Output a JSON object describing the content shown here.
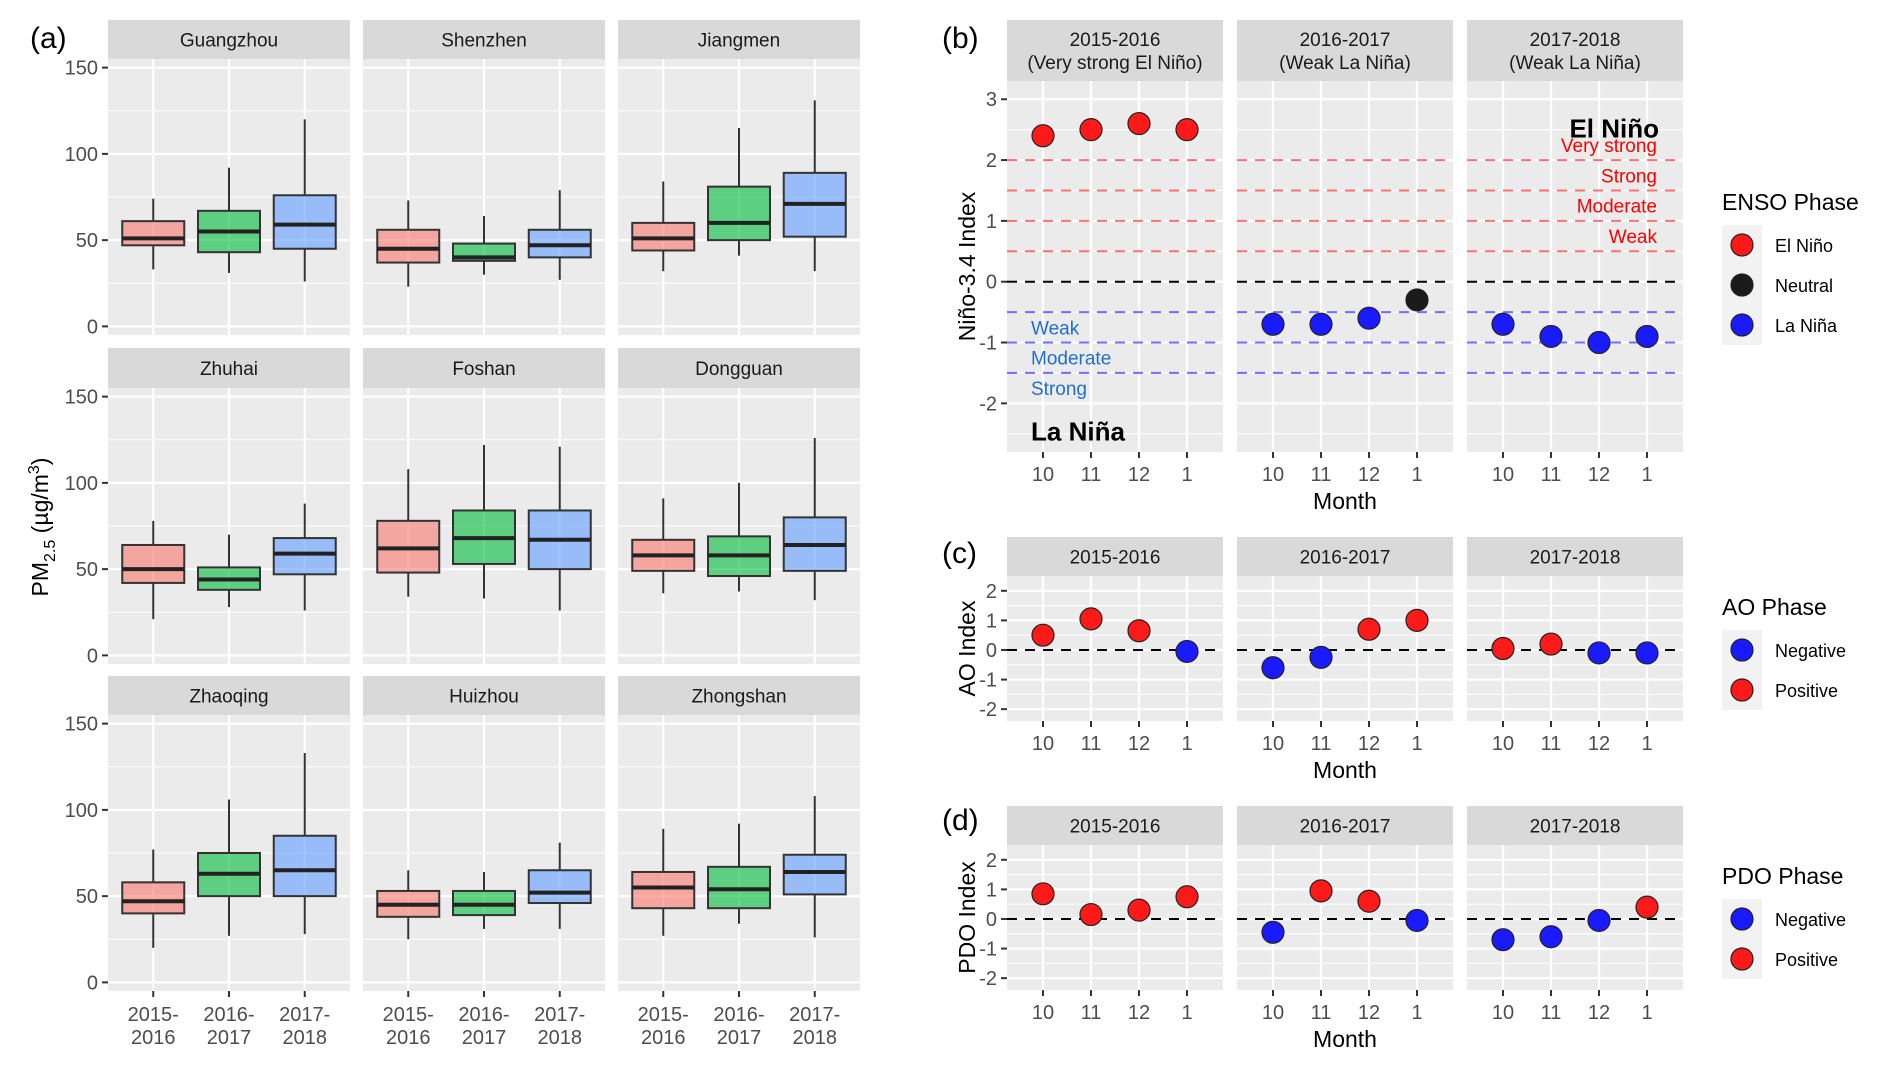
{
  "chart_data": [
    {
      "panel": "(a)",
      "type": "boxplot",
      "ylabel": "PM2.5 (µg/m3)",
      "ylabel_main": "PM",
      "ylabel_sub": "2.5",
      "ylabel_unit": " (µg/m",
      "ylabel_sup": "3",
      "ylabel_close": ")",
      "ylim": [
        -5,
        155
      ],
      "yticks": [
        0,
        50,
        100,
        150
      ],
      "categories": [
        "2015-\n2016",
        "2016-\n2017",
        "2017-\n2018"
      ],
      "category_lines": [
        [
          "2015-",
          "2016"
        ],
        [
          "2016-",
          "2017"
        ],
        [
          "2017-",
          "2018"
        ]
      ],
      "colors": [
        "#f8766d",
        "#00ba38",
        "#619cff"
      ],
      "facets": [
        {
          "name": "Guangzhou",
          "boxes": [
            {
              "lower": 33,
              "q1": 47,
              "median": 51,
              "q3": 61,
              "upper": 74
            },
            {
              "lower": 31,
              "q1": 43,
              "median": 55,
              "q3": 67,
              "upper": 92
            },
            {
              "lower": 26,
              "q1": 45,
              "median": 59,
              "q3": 76,
              "upper": 120
            }
          ]
        },
        {
          "name": "Shenzhen",
          "boxes": [
            {
              "lower": 23,
              "q1": 37,
              "median": 45,
              "q3": 56,
              "upper": 73
            },
            {
              "lower": 30,
              "q1": 38,
              "median": 40,
              "q3": 48,
              "upper": 64
            },
            {
              "lower": 27,
              "q1": 40,
              "median": 47,
              "q3": 56,
              "upper": 79
            }
          ]
        },
        {
          "name": "Jiangmen",
          "boxes": [
            {
              "lower": 32,
              "q1": 44,
              "median": 51,
              "q3": 60,
              "upper": 84
            },
            {
              "lower": 41,
              "q1": 50,
              "median": 60,
              "q3": 81,
              "upper": 115
            },
            {
              "lower": 32,
              "q1": 52,
              "median": 71,
              "q3": 89,
              "upper": 131
            }
          ]
        },
        {
          "name": "Zhuhai",
          "boxes": [
            {
              "lower": 21,
              "q1": 42,
              "median": 50,
              "q3": 64,
              "upper": 78
            },
            {
              "lower": 28,
              "q1": 38,
              "median": 44,
              "q3": 51,
              "upper": 70
            },
            {
              "lower": 26,
              "q1": 47,
              "median": 59,
              "q3": 68,
              "upper": 88
            }
          ]
        },
        {
          "name": "Foshan",
          "boxes": [
            {
              "lower": 34,
              "q1": 48,
              "median": 62,
              "q3": 78,
              "upper": 108
            },
            {
              "lower": 33,
              "q1": 53,
              "median": 68,
              "q3": 84,
              "upper": 122
            },
            {
              "lower": 26,
              "q1": 50,
              "median": 67,
              "q3": 84,
              "upper": 121
            }
          ]
        },
        {
          "name": "Dongguan",
          "boxes": [
            {
              "lower": 36,
              "q1": 49,
              "median": 58,
              "q3": 67,
              "upper": 91
            },
            {
              "lower": 37,
              "q1": 46,
              "median": 58,
              "q3": 69,
              "upper": 100
            },
            {
              "lower": 32,
              "q1": 49,
              "median": 64,
              "q3": 80,
              "upper": 126
            }
          ]
        },
        {
          "name": "Zhaoqing",
          "boxes": [
            {
              "lower": 20,
              "q1": 40,
              "median": 47,
              "q3": 58,
              "upper": 77
            },
            {
              "lower": 27,
              "q1": 50,
              "median": 63,
              "q3": 75,
              "upper": 106
            },
            {
              "lower": 28,
              "q1": 50,
              "median": 65,
              "q3": 85,
              "upper": 133
            }
          ]
        },
        {
          "name": "Huizhou",
          "boxes": [
            {
              "lower": 25,
              "q1": 38,
              "median": 45,
              "q3": 53,
              "upper": 65
            },
            {
              "lower": 31,
              "q1": 39,
              "median": 45,
              "q3": 53,
              "upper": 64
            },
            {
              "lower": 31,
              "q1": 46,
              "median": 52,
              "q3": 65,
              "upper": 81
            }
          ]
        },
        {
          "name": "Zhongshan",
          "boxes": [
            {
              "lower": 27,
              "q1": 43,
              "median": 55,
              "q3": 64,
              "upper": 89
            },
            {
              "lower": 34,
              "q1": 43,
              "median": 54,
              "q3": 67,
              "upper": 92
            },
            {
              "lower": 26,
              "q1": 51,
              "median": 64,
              "q3": 74,
              "upper": 108
            }
          ]
        }
      ]
    },
    {
      "panel": "(b)",
      "type": "scatter",
      "ylabel": "Niño-3.4 Index",
      "xlabel": "Month",
      "ylim": [
        -2.8,
        3.3
      ],
      "yticks": [
        -2,
        -1,
        0,
        1,
        2,
        3
      ],
      "x_categories": [
        "10",
        "11",
        "12",
        "1"
      ],
      "facets": [
        {
          "title_line1": "2015-2016",
          "title_line2": "(Very strong El Niño)",
          "points": [
            {
              "month": "10",
              "value": 2.4,
              "phase": "El Niño"
            },
            {
              "month": "11",
              "value": 2.5,
              "phase": "El Niño"
            },
            {
              "month": "12",
              "value": 2.6,
              "phase": "El Niño"
            },
            {
              "month": "1",
              "value": 2.5,
              "phase": "El Niño"
            }
          ]
        },
        {
          "title_line1": "2016-2017",
          "title_line2": "(Weak La Niña)",
          "points": [
            {
              "month": "10",
              "value": -0.7,
              "phase": "La Niña"
            },
            {
              "month": "11",
              "value": -0.7,
              "phase": "La Niña"
            },
            {
              "month": "12",
              "value": -0.6,
              "phase": "La Niña"
            },
            {
              "month": "1",
              "value": -0.3,
              "phase": "Neutral"
            }
          ]
        },
        {
          "title_line1": "2017-2018",
          "title_line2": "(Weak La Niña)",
          "points": [
            {
              "month": "10",
              "value": -0.7,
              "phase": "La Niña"
            },
            {
              "month": "11",
              "value": -0.9,
              "phase": "La Niña"
            },
            {
              "month": "12",
              "value": -1.0,
              "phase": "La Niña"
            },
            {
              "month": "1",
              "value": -0.9,
              "phase": "La Niña"
            }
          ]
        }
      ],
      "reference_lines": [
        {
          "y": 2.0,
          "color": "#ff7070"
        },
        {
          "y": 1.5,
          "color": "#ff7070"
        },
        {
          "y": 1.0,
          "color": "#ff7070"
        },
        {
          "y": 0.5,
          "color": "#ff7070"
        },
        {
          "y": 0,
          "color": "#000000"
        },
        {
          "y": -0.5,
          "color": "#7070ff"
        },
        {
          "y": -1.0,
          "color": "#7070ff"
        },
        {
          "y": -1.5,
          "color": "#7070ff"
        }
      ],
      "annotations": {
        "el_nino_title": "El Niño",
        "el_nino_levels": [
          {
            "label": "Very strong",
            "y": 2.25
          },
          {
            "label": "Strong",
            "y": 1.75
          },
          {
            "label": "Moderate",
            "y": 1.25
          },
          {
            "label": "Weak",
            "y": 0.75
          }
        ],
        "la_nina_title": "La Niña",
        "la_nina_levels": [
          {
            "label": "Weak",
            "y": -0.75
          },
          {
            "label": "Moderate",
            "y": -1.25
          },
          {
            "label": "Strong",
            "y": -1.75
          }
        ]
      },
      "legend": {
        "title": "ENSO Phase",
        "position": "right",
        "items": [
          {
            "label": "El Niño",
            "color": "#ff1a1a"
          },
          {
            "label": "Neutral",
            "color": "#1a1a1a"
          },
          {
            "label": "La Niña",
            "color": "#1a1aff"
          }
        ]
      }
    },
    {
      "panel": "(c)",
      "type": "scatter",
      "ylabel": "AO Index",
      "xlabel": "Month",
      "ylim": [
        -2.4,
        2.5
      ],
      "yticks": [
        -2,
        -1,
        0,
        1,
        2
      ],
      "x_categories": [
        "10",
        "11",
        "12",
        "1"
      ],
      "facets": [
        {
          "title_line1": "2015-2016",
          "points": [
            {
              "month": "10",
              "value": 0.5,
              "phase": "Positive"
            },
            {
              "month": "11",
              "value": 1.05,
              "phase": "Positive"
            },
            {
              "month": "12",
              "value": 0.65,
              "phase": "Positive"
            },
            {
              "month": "1",
              "value": -0.05,
              "phase": "Negative"
            }
          ]
        },
        {
          "title_line1": "2016-2017",
          "points": [
            {
              "month": "10",
              "value": -0.6,
              "phase": "Negative"
            },
            {
              "month": "11",
              "value": -0.25,
              "phase": "Negative"
            },
            {
              "month": "12",
              "value": 0.7,
              "phase": "Positive"
            },
            {
              "month": "1",
              "value": 1.0,
              "phase": "Positive"
            }
          ]
        },
        {
          "title_line1": "2017-2018",
          "points": [
            {
              "month": "10",
              "value": 0.05,
              "phase": "Positive"
            },
            {
              "month": "11",
              "value": 0.2,
              "phase": "Positive"
            },
            {
              "month": "12",
              "value": -0.1,
              "phase": "Negative"
            },
            {
              "month": "1",
              "value": -0.1,
              "phase": "Negative"
            }
          ]
        }
      ],
      "reference_lines": [
        {
          "y": 0,
          "color": "#000000"
        }
      ],
      "legend": {
        "title": "AO Phase",
        "position": "right",
        "items": [
          {
            "label": "Negative",
            "color": "#1a1aff"
          },
          {
            "label": "Positive",
            "color": "#ff1a1a"
          }
        ]
      }
    },
    {
      "panel": "(d)",
      "type": "scatter",
      "ylabel": "PDO Index",
      "xlabel": "Month",
      "ylim": [
        -2.4,
        2.5
      ],
      "yticks": [
        -2,
        -1,
        0,
        1,
        2
      ],
      "x_categories": [
        "10",
        "11",
        "12",
        "1"
      ],
      "facets": [
        {
          "title_line1": "2015-2016",
          "points": [
            {
              "month": "10",
              "value": 0.85,
              "phase": "Positive"
            },
            {
              "month": "11",
              "value": 0.15,
              "phase": "Positive"
            },
            {
              "month": "12",
              "value": 0.3,
              "phase": "Positive"
            },
            {
              "month": "1",
              "value": 0.75,
              "phase": "Positive"
            }
          ]
        },
        {
          "title_line1": "2016-2017",
          "points": [
            {
              "month": "10",
              "value": -0.45,
              "phase": "Negative"
            },
            {
              "month": "11",
              "value": 0.95,
              "phase": "Positive"
            },
            {
              "month": "12",
              "value": 0.6,
              "phase": "Positive"
            },
            {
              "month": "1",
              "value": -0.05,
              "phase": "Negative"
            }
          ]
        },
        {
          "title_line1": "2017-2018",
          "points": [
            {
              "month": "10",
              "value": -0.7,
              "phase": "Negative"
            },
            {
              "month": "11",
              "value": -0.6,
              "phase": "Negative"
            },
            {
              "month": "12",
              "value": -0.05,
              "phase": "Negative"
            },
            {
              "month": "1",
              "value": 0.4,
              "phase": "Positive"
            }
          ]
        }
      ],
      "reference_lines": [
        {
          "y": 0,
          "color": "#000000"
        }
      ],
      "legend": {
        "title": "PDO Phase",
        "position": "right",
        "items": [
          {
            "label": "Negative",
            "color": "#1a1aff"
          },
          {
            "label": "Positive",
            "color": "#ff1a1a"
          }
        ]
      }
    }
  ]
}
